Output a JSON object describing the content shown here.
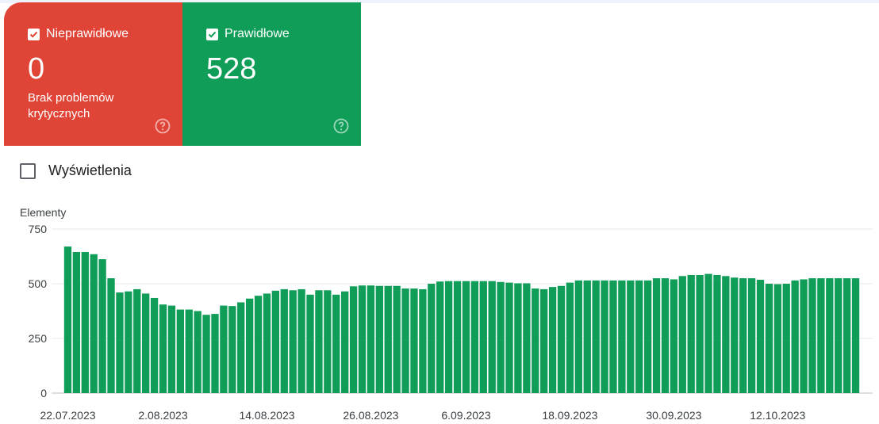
{
  "cards": {
    "invalid": {
      "label": "Nieprawidłowe",
      "count": "0",
      "description": "Brak problemów krytycznych",
      "color": "#e04437",
      "checked": true
    },
    "valid": {
      "label": "Prawidłowe",
      "count": "528",
      "color": "#0f9d58",
      "checked": true
    }
  },
  "views_toggle": {
    "label": "Wyświetlenia",
    "checked": false
  },
  "chart_data": {
    "type": "bar",
    "ylabel": "Elementy",
    "ylim": [
      0,
      750
    ],
    "yticks": [
      "0",
      "250",
      "500",
      "750"
    ],
    "bar_color": "#0f9d58",
    "grid": true,
    "xtick_labels": [
      "22.07.2023",
      "2.08.2023",
      "14.08.2023",
      "26.08.2023",
      "6.09.2023",
      "18.09.2023",
      "30.09.2023",
      "12.10.2023"
    ],
    "xtick_positions": [
      0,
      11,
      23,
      35,
      46,
      58,
      70,
      82
    ],
    "values": [
      670,
      645,
      645,
      635,
      612,
      525,
      460,
      465,
      475,
      455,
      435,
      405,
      400,
      382,
      382,
      375,
      358,
      362,
      400,
      398,
      415,
      432,
      445,
      455,
      468,
      475,
      470,
      475,
      450,
      470,
      470,
      450,
      465,
      488,
      492,
      492,
      490,
      490,
      490,
      478,
      478,
      475,
      500,
      510,
      512,
      512,
      512,
      512,
      512,
      512,
      508,
      505,
      502,
      502,
      478,
      475,
      485,
      490,
      505,
      515,
      515,
      515,
      515,
      515,
      515,
      515,
      515,
      515,
      525,
      525,
      520,
      535,
      540,
      540,
      545,
      540,
      535,
      528,
      525,
      525,
      518,
      500,
      498,
      500,
      515,
      520,
      525,
      525,
      525,
      525,
      525,
      525
    ]
  }
}
